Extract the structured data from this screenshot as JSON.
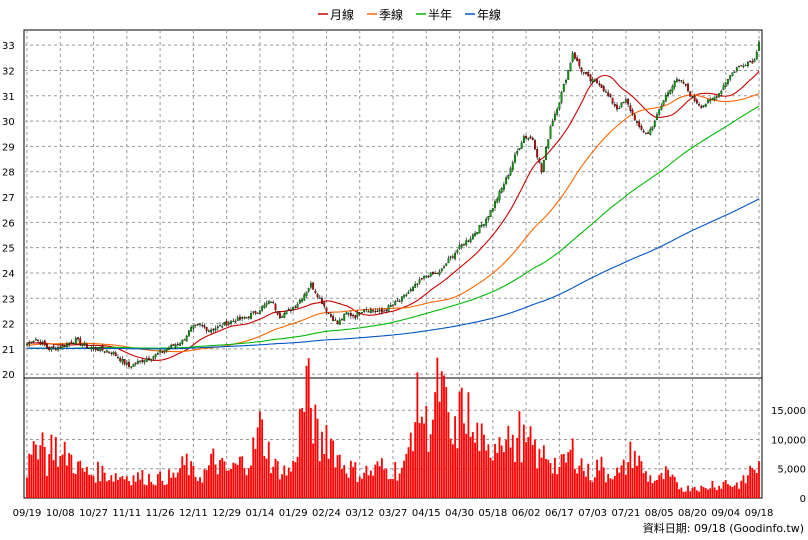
{
  "chart_data": {
    "type": "candlestick",
    "legend": [
      {
        "name": "月線",
        "color": "#cc0000"
      },
      {
        "name": "季線",
        "color": "#ff6600"
      },
      {
        "name": "半年",
        "color": "#00bb00"
      },
      {
        "name": "年線",
        "color": "#0055cc"
      }
    ],
    "x_ticks": [
      "09/19",
      "10/08",
      "10/27",
      "11/11",
      "11/26",
      "12/11",
      "12/29",
      "01/14",
      "01/29",
      "02/24",
      "03/12",
      "03/27",
      "04/15",
      "04/30",
      "05/18",
      "06/02",
      "06/17",
      "07/03",
      "07/21",
      "08/05",
      "08/20",
      "09/04",
      "09/18"
    ],
    "price_axis": {
      "ylim": [
        19.85,
        33.6
      ],
      "ticks": [
        20,
        21,
        22,
        23,
        24,
        25,
        26,
        27,
        28,
        29,
        30,
        31,
        32,
        33
      ]
    },
    "volume_axis": {
      "ylim": [
        0,
        20500
      ],
      "ticks": [
        "0",
        "5,000",
        "10,000",
        "15,000"
      ],
      "tick_values": [
        0,
        5000,
        10000,
        15000
      ]
    },
    "grid": true,
    "credit": "資料日期: 09/18 (Goodinfo.tw)",
    "up_color": "#00aa00",
    "down_color": "#cc0000",
    "volume_color": "#ff0000",
    "close_anchors": [
      [
        0,
        21.2
      ],
      [
        4,
        21.4
      ],
      [
        10,
        21.0
      ],
      [
        16,
        21.1
      ],
      [
        22,
        21.35
      ],
      [
        28,
        21.05
      ],
      [
        34,
        20.95
      ],
      [
        38,
        20.9
      ],
      [
        42,
        20.6
      ],
      [
        46,
        20.3
      ],
      [
        52,
        20.55
      ],
      [
        58,
        20.75
      ],
      [
        64,
        21.05
      ],
      [
        70,
        21.3
      ],
      [
        74,
        21.8
      ],
      [
        78,
        21.95
      ],
      [
        82,
        21.75
      ],
      [
        86,
        21.85
      ],
      [
        92,
        22.1
      ],
      [
        98,
        22.2
      ],
      [
        104,
        22.5
      ],
      [
        110,
        22.9
      ],
      [
        114,
        22.3
      ],
      [
        118,
        22.5
      ],
      [
        122,
        22.8
      ],
      [
        126,
        23.3
      ],
      [
        128,
        23.55
      ],
      [
        132,
        23.0
      ],
      [
        136,
        22.4
      ],
      [
        140,
        22.0
      ],
      [
        144,
        22.4
      ],
      [
        148,
        22.3
      ],
      [
        152,
        22.6
      ],
      [
        156,
        22.5
      ],
      [
        160,
        22.45
      ],
      [
        164,
        22.7
      ],
      [
        168,
        22.9
      ],
      [
        174,
        23.4
      ],
      [
        180,
        23.9
      ],
      [
        186,
        24.0
      ],
      [
        190,
        24.5
      ],
      [
        196,
        25.1
      ],
      [
        200,
        25.4
      ],
      [
        206,
        26.0
      ],
      [
        210,
        26.6
      ],
      [
        216,
        27.7
      ],
      [
        220,
        28.6
      ],
      [
        224,
        29.4
      ],
      [
        228,
        29.3
      ],
      [
        232,
        28.0
      ],
      [
        236,
        29.8
      ],
      [
        240,
        30.8
      ],
      [
        244,
        32.0
      ],
      [
        246,
        32.7
      ],
      [
        250,
        32.0
      ],
      [
        254,
        31.6
      ],
      [
        258,
        31.5
      ],
      [
        262,
        31.0
      ],
      [
        266,
        30.5
      ],
      [
        270,
        30.8
      ],
      [
        274,
        30.1
      ],
      [
        276,
        29.7
      ],
      [
        280,
        29.5
      ],
      [
        284,
        30.2
      ],
      [
        288,
        31.0
      ],
      [
        292,
        31.6
      ],
      [
        296,
        31.5
      ],
      [
        300,
        30.9
      ],
      [
        304,
        30.6
      ],
      [
        308,
        30.8
      ],
      [
        312,
        31.1
      ],
      [
        316,
        31.7
      ],
      [
        320,
        32.1
      ],
      [
        324,
        32.3
      ],
      [
        328,
        32.4
      ],
      [
        330,
        33.2
      ]
    ],
    "volume_anchors": [
      [
        0,
        5000
      ],
      [
        3,
        7000
      ],
      [
        6,
        12500
      ],
      [
        9,
        6000
      ],
      [
        12,
        10000
      ],
      [
        15,
        6500
      ],
      [
        18,
        7500
      ],
      [
        21,
        6200
      ],
      [
        24,
        5000
      ],
      [
        27,
        4300
      ],
      [
        30,
        4100
      ],
      [
        33,
        4600
      ],
      [
        36,
        4000
      ],
      [
        39,
        3900
      ],
      [
        42,
        3700
      ],
      [
        45,
        3800
      ],
      [
        48,
        3500
      ],
      [
        51,
        3600
      ],
      [
        54,
        3500
      ],
      [
        57,
        3400
      ],
      [
        60,
        3300
      ],
      [
        63,
        3600
      ],
      [
        66,
        3500
      ],
      [
        69,
        4800
      ],
      [
        72,
        6000
      ],
      [
        75,
        4000
      ],
      [
        78,
        3800
      ],
      [
        81,
        4500
      ],
      [
        84,
        6500
      ],
      [
        87,
        5500
      ],
      [
        90,
        4500
      ],
      [
        93,
        5000
      ],
      [
        96,
        5800
      ],
      [
        99,
        6500
      ],
      [
        102,
        8000
      ],
      [
        105,
        12000
      ],
      [
        108,
        9000
      ],
      [
        111,
        5500
      ],
      [
        114,
        5000
      ],
      [
        117,
        4400
      ],
      [
        120,
        5200
      ],
      [
        123,
        12500
      ],
      [
        126,
        19000
      ],
      [
        129,
        14000
      ],
      [
        132,
        8000
      ],
      [
        135,
        11500
      ],
      [
        138,
        9000
      ],
      [
        141,
        6500
      ],
      [
        144,
        5500
      ],
      [
        147,
        4800
      ],
      [
        150,
        4200
      ],
      [
        153,
        4500
      ],
      [
        156,
        4300
      ],
      [
        159,
        5500
      ],
      [
        162,
        4700
      ],
      [
        165,
        4900
      ],
      [
        168,
        4700
      ],
      [
        171,
        5800
      ],
      [
        174,
        13000
      ],
      [
        177,
        16500
      ],
      [
        180,
        12000
      ],
      [
        183,
        14000
      ],
      [
        186,
        19500
      ],
      [
        189,
        14500
      ],
      [
        192,
        8500
      ],
      [
        195,
        14000
      ],
      [
        198,
        16000
      ],
      [
        201,
        9500
      ],
      [
        204,
        11000
      ],
      [
        207,
        6500
      ],
      [
        210,
        9500
      ],
      [
        213,
        11000
      ],
      [
        216,
        12500
      ],
      [
        219,
        8000
      ],
      [
        222,
        11000
      ],
      [
        225,
        8500
      ],
      [
        228,
        9000
      ],
      [
        231,
        6300
      ],
      [
        234,
        8000
      ],
      [
        237,
        6500
      ],
      [
        240,
        4800
      ],
      [
        243,
        6500
      ],
      [
        246,
        8000
      ],
      [
        249,
        6500
      ],
      [
        252,
        4500
      ],
      [
        255,
        4000
      ],
      [
        258,
        6000
      ],
      [
        261,
        4000
      ],
      [
        264,
        4800
      ],
      [
        267,
        3900
      ],
      [
        270,
        5500
      ],
      [
        273,
        8000
      ],
      [
        276,
        6000
      ],
      [
        279,
        4000
      ],
      [
        282,
        3200
      ],
      [
        285,
        3000
      ],
      [
        288,
        4000
      ],
      [
        291,
        3000
      ],
      [
        294,
        2000
      ],
      [
        297,
        1500
      ],
      [
        300,
        2000
      ],
      [
        303,
        1800
      ],
      [
        306,
        1500
      ],
      [
        309,
        2500
      ],
      [
        312,
        2000
      ],
      [
        315,
        2800
      ],
      [
        318,
        2200
      ],
      [
        321,
        2400
      ],
      [
        324,
        3000
      ],
      [
        327,
        5500
      ],
      [
        330,
        5000
      ]
    ]
  }
}
